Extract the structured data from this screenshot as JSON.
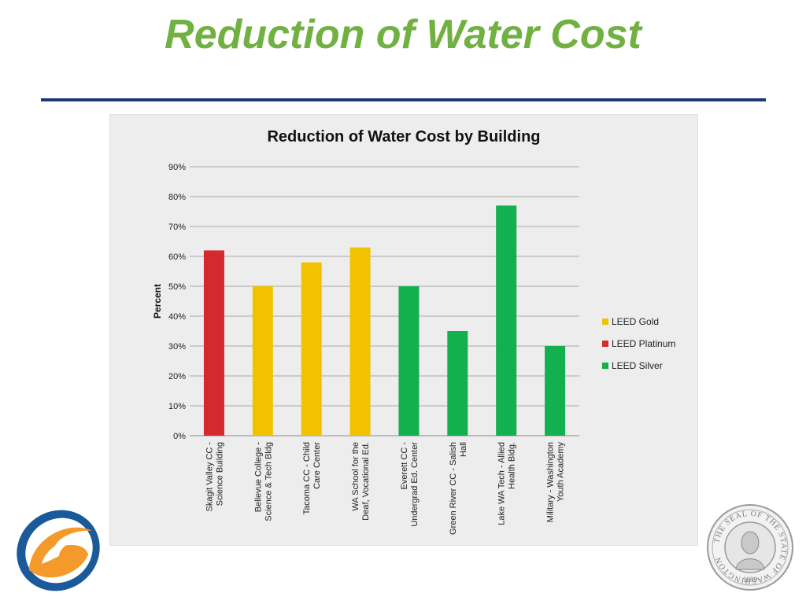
{
  "slide": {
    "title": "Reduction of Water Cost"
  },
  "colors": {
    "title": "#70b142",
    "rule": "#1a3a73",
    "LEED Gold": "#f2c200",
    "LEED Platinum": "#d42a2f",
    "LEED Silver": "#12b04f"
  },
  "chart_data": {
    "type": "bar",
    "title": "Reduction of Water Cost by Building",
    "ylabel": "Percent",
    "xlabel": "",
    "ylim": [
      0,
      90
    ],
    "yticks": [
      "0%",
      "10%",
      "20%",
      "30%",
      "40%",
      "50%",
      "60%",
      "70%",
      "80%",
      "90%"
    ],
    "grid": true,
    "legend_position": "right",
    "legend": [
      "LEED Gold",
      "LEED Platinum",
      "LEED Silver"
    ],
    "categories": [
      [
        "Skagit Valley CC -",
        "Science Building"
      ],
      [
        "Bellevue College -",
        "Science & Tech Bldg"
      ],
      [
        "Tacoma CC - Child",
        "Care Center"
      ],
      [
        "WA School for the",
        "Deaf, Vocational Ed."
      ],
      [
        "Everett CC -",
        "Undergrad Ed. Center"
      ],
      [
        "Green River CC - Salish",
        "Hall"
      ],
      [
        "Lake WA Tech - Allied",
        "Health Bldg."
      ],
      [
        "Military - Washington",
        "Youth Academy"
      ]
    ],
    "values": [
      62,
      50,
      58,
      63,
      50,
      35,
      77,
      30
    ],
    "series_membership": [
      "LEED Platinum",
      "LEED Gold",
      "LEED Gold",
      "LEED Gold",
      "LEED Silver",
      "LEED Silver",
      "LEED Silver",
      "LEED Silver"
    ]
  },
  "seal": {
    "text": "THE SEAL OF THE STATE OF WASHINGTON",
    "year": "1889"
  }
}
